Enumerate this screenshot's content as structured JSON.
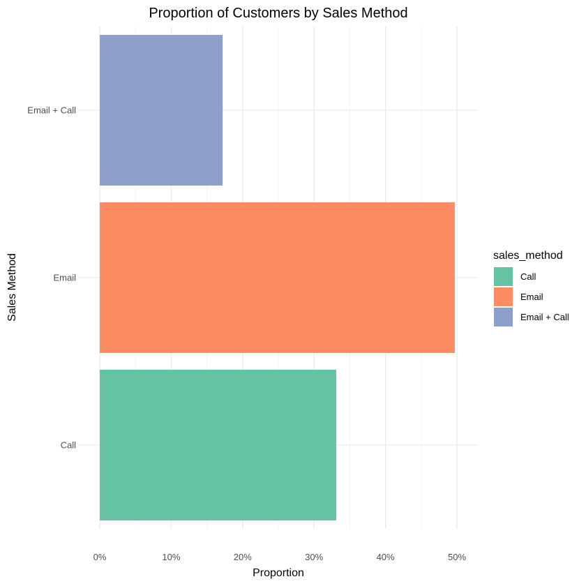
{
  "chart_data": {
    "type": "bar",
    "orientation": "horizontal",
    "title": "Proportion of Customers by Sales Method",
    "xlabel": "Proportion",
    "ylabel": "Sales Method",
    "categories": [
      "Call",
      "Email",
      "Email + Call"
    ],
    "values": [
      0.331,
      0.497,
      0.172
    ],
    "colors": [
      "#66c2a5",
      "#fc8d62",
      "#8da0cb"
    ],
    "xlim": [
      0,
      0.52
    ],
    "x_ticks": [
      0,
      0.1,
      0.2,
      0.3,
      0.4,
      0.5
    ],
    "x_tick_labels": [
      "0%",
      "10%",
      "20%",
      "30%",
      "40%",
      "50%"
    ],
    "grid": true,
    "legend": {
      "title": "sales_method",
      "position": "right",
      "entries": [
        "Call",
        "Email",
        "Email + Call"
      ]
    }
  }
}
